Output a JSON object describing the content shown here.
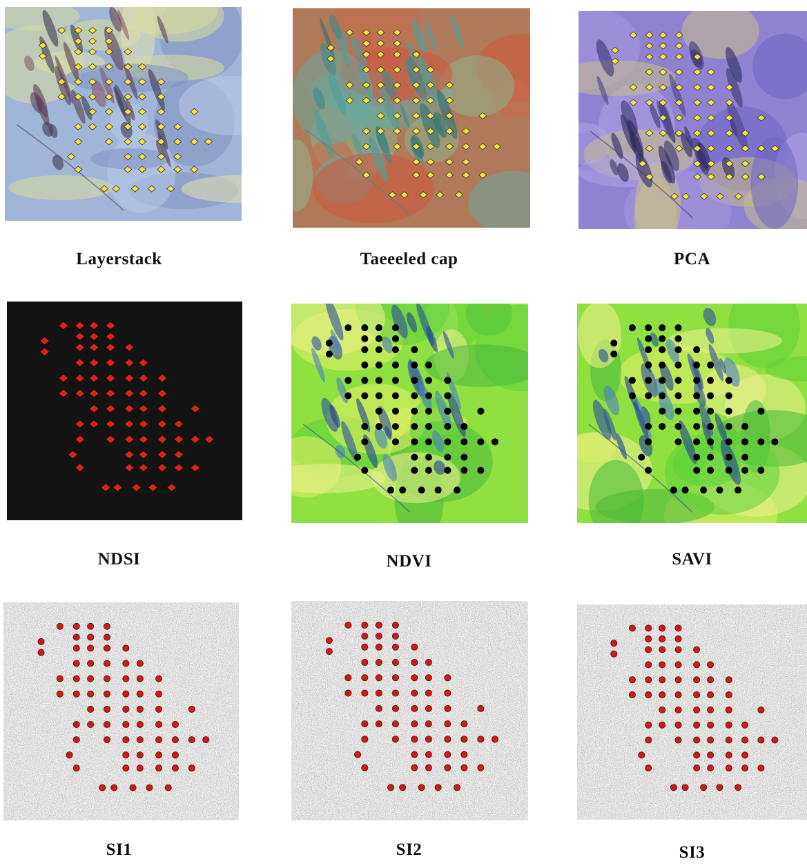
{
  "panels": [
    {
      "id": "layerstack",
      "label": "Layerstack",
      "style": "falsecolor-blue",
      "point_color": "#f5e342",
      "point_stroke": "#333333",
      "point_shape": "diamond"
    },
    {
      "id": "tasseled",
      "label": "Taeeeled cap",
      "style": "falsecolor-red",
      "point_color": "#f5e342",
      "point_stroke": "#333333",
      "point_shape": "diamond"
    },
    {
      "id": "pca",
      "label": "PCA",
      "style": "falsecolor-purple",
      "point_color": "#f5e342",
      "point_stroke": "#333333",
      "point_shape": "diamond"
    },
    {
      "id": "ndsi",
      "label": "NDSI",
      "style": "black",
      "point_color": "#e0211b",
      "point_stroke": "#e0211b",
      "point_shape": "diamond"
    },
    {
      "id": "ndvi",
      "label": "NDVI",
      "style": "green",
      "point_color": "#000000",
      "point_stroke": "#000000",
      "point_shape": "circle"
    },
    {
      "id": "savi",
      "label": "SAVI",
      "style": "green",
      "point_color": "#000000",
      "point_stroke": "#000000",
      "point_shape": "circle"
    },
    {
      "id": "si1",
      "label": "SI1",
      "style": "noise",
      "point_color": "#cc1a1a",
      "point_stroke": "#5a0a0a",
      "point_shape": "circle"
    },
    {
      "id": "si2",
      "label": "SI2",
      "style": "noise",
      "point_color": "#cc1a1a",
      "point_stroke": "#5a0a0a",
      "point_shape": "circle"
    },
    {
      "id": "si3",
      "label": "SI3",
      "style": "noise",
      "point_color": "#cc1a1a",
      "point_stroke": "#5a0a0a",
      "point_shape": "circle"
    }
  ]
}
